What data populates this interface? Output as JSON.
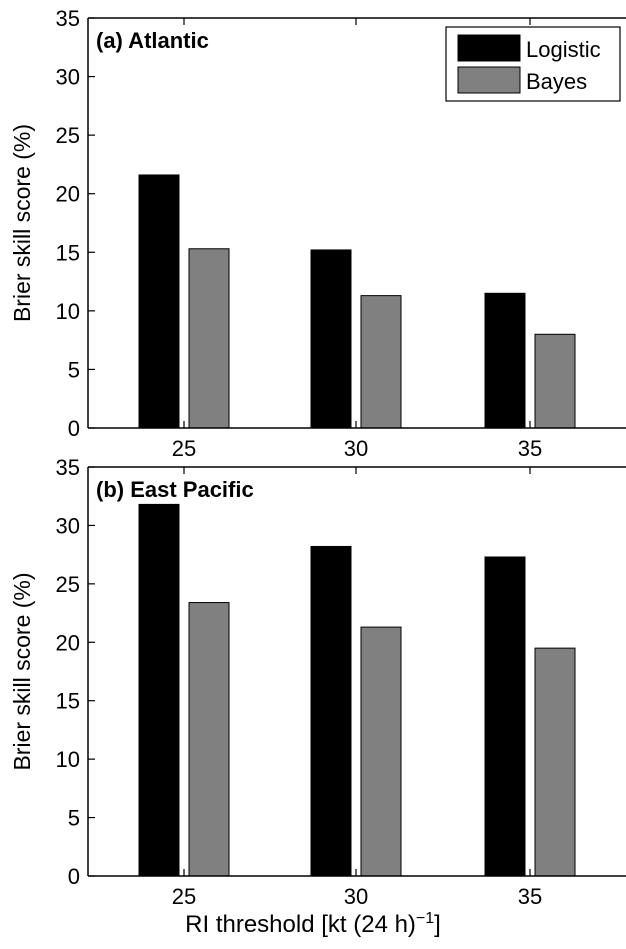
{
  "chart_data": [
    {
      "type": "bar",
      "panel_label": "(a) Atlantic",
      "categories": [
        "25",
        "30",
        "35"
      ],
      "series": [
        {
          "name": "Logistic",
          "values": [
            21.6,
            15.2,
            11.5
          ]
        },
        {
          "name": "Bayes",
          "values": [
            15.3,
            11.3,
            8.0
          ]
        }
      ],
      "ylabel": "Brier skill score (%)",
      "ylim": [
        0,
        35
      ],
      "yticks": [
        "0",
        "5",
        "10",
        "15",
        "20",
        "25",
        "30",
        "35"
      ],
      "legend_position": "top-right",
      "grid": false
    },
    {
      "type": "bar",
      "panel_label": "(b) East Pacific",
      "categories": [
        "25",
        "30",
        "35"
      ],
      "series": [
        {
          "name": "Logistic",
          "values": [
            31.8,
            28.2,
            27.3
          ]
        },
        {
          "name": "Bayes",
          "values": [
            23.4,
            21.3,
            19.5
          ]
        }
      ],
      "ylabel": "Brier skill score (%)",
      "ylim": [
        0,
        35
      ],
      "yticks": [
        "0",
        "5",
        "10",
        "15",
        "20",
        "25",
        "30",
        "35"
      ],
      "grid": false
    }
  ],
  "xlabel": {
    "text": "RI threshold [kt (24 h)",
    "sup": "−1",
    "close": "]"
  },
  "colors": {
    "Logistic": "#000000",
    "Bayes": "#808080"
  }
}
